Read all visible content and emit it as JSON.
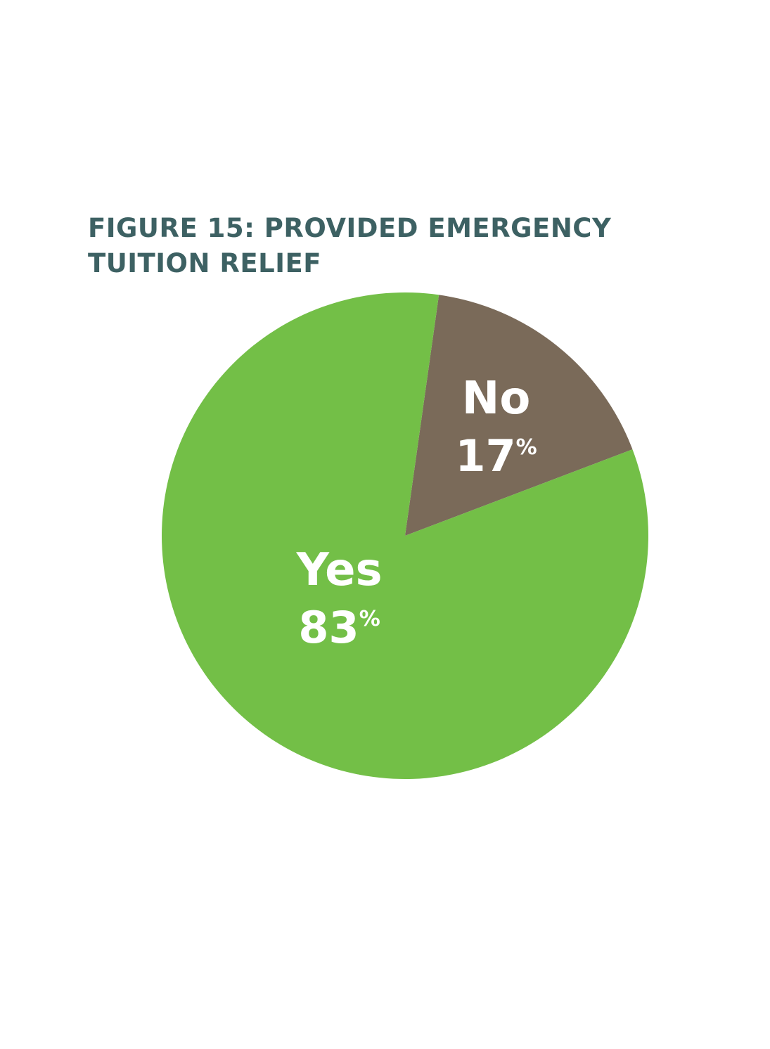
{
  "title_lines": [
    "FIGURE 15: PROVIDED EMERGENCY",
    "TUITION RELIEF"
  ],
  "chart_data": {
    "type": "pie",
    "title": "FIGURE 15: PROVIDED EMERGENCY TUITION RELIEF",
    "slices": [
      {
        "label": "No",
        "value": 17,
        "display": "17",
        "unit": "%",
        "color": "#7a6a59"
      },
      {
        "label": "Yes",
        "value": 83,
        "display": "83",
        "unit": "%",
        "color": "#73bf47"
      }
    ],
    "start_angle_deg": 8,
    "direction": "clockwise",
    "label_color": "#ffffff"
  }
}
